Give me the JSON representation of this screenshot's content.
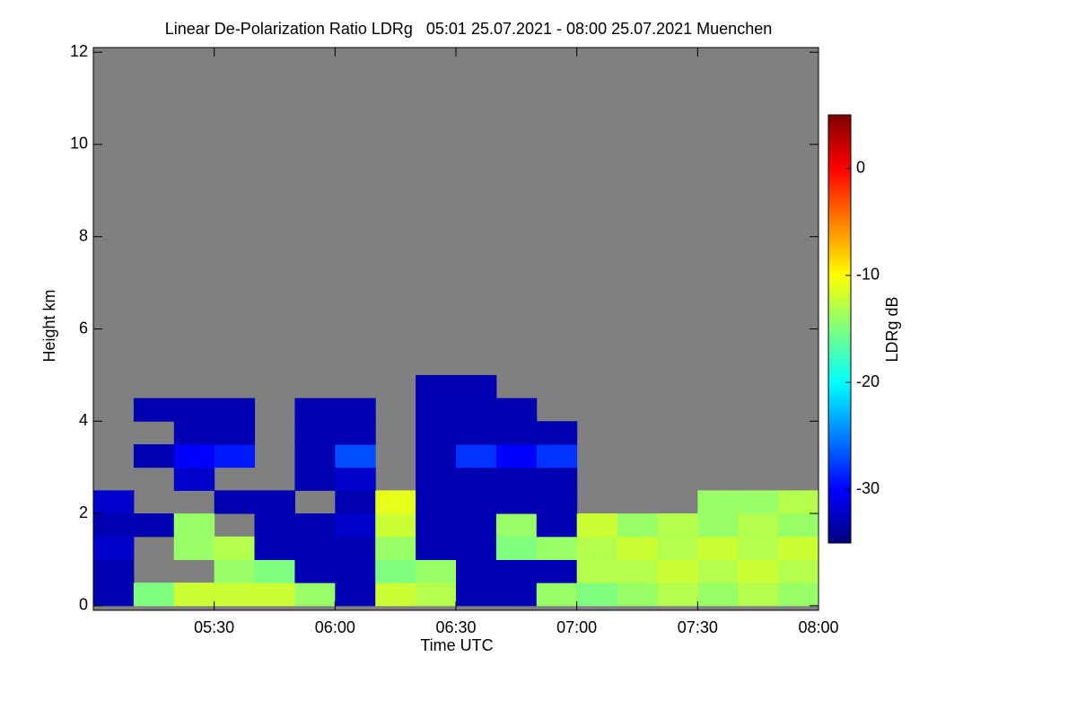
{
  "chart_data": {
    "type": "heatmap",
    "title": "Linear De-Polarization Ratio LDRg   05:01 25.07.2021 - 08:00 25.07.2021 Muenchen",
    "x_label": "Time UTC",
    "y_label": "Height km",
    "colorbar_label": "LDRg dB",
    "xlim": [
      300,
      480
    ],
    "xticks": [
      {
        "value": 330,
        "label": "05:30"
      },
      {
        "value": 360,
        "label": "06:00"
      },
      {
        "value": 390,
        "label": "06:30"
      },
      {
        "value": 420,
        "label": "07:00"
      },
      {
        "value": 450,
        "label": "07:30"
      },
      {
        "value": 480,
        "label": "08:00"
      }
    ],
    "ylim": [
      -0.1,
      12.1
    ],
    "yticks": [
      0,
      2,
      4,
      6,
      8,
      10,
      12
    ],
    "zlim": [
      -35,
      5
    ],
    "zticks": [
      0,
      -10,
      -20,
      -30
    ],
    "colormap": "jet",
    "missing_color": "#808080",
    "xbins": [
      300,
      310,
      320,
      330,
      340,
      350,
      360,
      370,
      380,
      390,
      400,
      410,
      420,
      430,
      440,
      450,
      460,
      470,
      480
    ],
    "ybins": [
      0,
      0.5,
      1,
      1.5,
      2,
      2.5,
      3,
      3.5,
      4,
      4.5,
      5
    ],
    "z": [
      [
        -33,
        -15,
        -12,
        -12,
        -12,
        -14,
        -33,
        -12,
        -13,
        -33,
        -33,
        -14,
        -15,
        -14,
        -13,
        -14,
        -13,
        -14
      ],
      [
        -33,
        null,
        null,
        -14,
        -15,
        -33,
        -33,
        -15,
        -14,
        -33,
        -33,
        -33,
        -13,
        -13,
        -12,
        -13,
        -12,
        -13
      ],
      [
        -32,
        null,
        -14,
        -13,
        -33,
        -33,
        -33,
        -14,
        -33,
        -33,
        -15,
        -14,
        -13,
        -12,
        -13,
        -12,
        -13,
        -12
      ],
      [
        -33,
        -33,
        -14,
        null,
        -33,
        -33,
        -32,
        -12,
        -33,
        -33,
        -14,
        -33,
        -12,
        -14,
        -13,
        -14,
        -13,
        -14
      ],
      [
        -32,
        null,
        null,
        -33,
        -33,
        null,
        -33,
        -11,
        -33,
        -33,
        -33,
        -33,
        null,
        null,
        null,
        -14,
        -14,
        -13
      ],
      [
        null,
        null,
        -32,
        null,
        null,
        -33,
        -32,
        null,
        -33,
        -33,
        -33,
        -33,
        null,
        null,
        null,
        null,
        null,
        null
      ],
      [
        null,
        -33,
        -30,
        -29,
        null,
        -33,
        -27,
        null,
        -33,
        -28,
        -30,
        -28,
        null,
        null,
        null,
        null,
        null,
        null
      ],
      [
        null,
        null,
        -33,
        -33,
        null,
        -33,
        -33,
        null,
        -33,
        -33,
        -33,
        -33,
        null,
        null,
        null,
        null,
        null,
        null
      ],
      [
        null,
        -33,
        -33,
        -33,
        null,
        -33,
        -33,
        null,
        -33,
        -33,
        -33,
        null,
        null,
        null,
        null,
        null,
        null,
        null
      ],
      [
        null,
        null,
        null,
        null,
        null,
        null,
        null,
        null,
        -33,
        -33,
        null,
        null,
        null,
        null,
        null,
        null,
        null,
        null
      ]
    ]
  }
}
